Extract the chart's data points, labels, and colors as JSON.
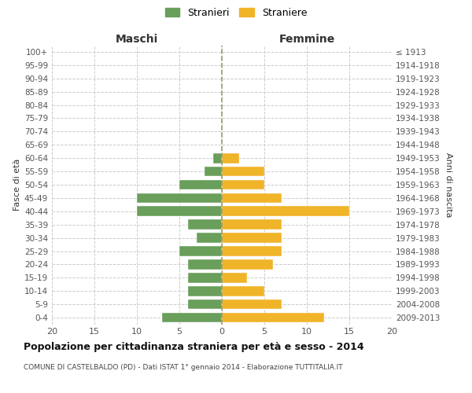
{
  "age_groups": [
    "100+",
    "95-99",
    "90-94",
    "85-89",
    "80-84",
    "75-79",
    "70-74",
    "65-69",
    "60-64",
    "55-59",
    "50-54",
    "45-49",
    "40-44",
    "35-39",
    "30-34",
    "25-29",
    "20-24",
    "15-19",
    "10-14",
    "5-9",
    "0-4"
  ],
  "birth_years": [
    "≤ 1913",
    "1914-1918",
    "1919-1923",
    "1924-1928",
    "1929-1933",
    "1934-1938",
    "1939-1943",
    "1944-1948",
    "1949-1953",
    "1954-1958",
    "1959-1963",
    "1964-1968",
    "1969-1973",
    "1974-1978",
    "1979-1983",
    "1984-1988",
    "1989-1993",
    "1994-1998",
    "1999-2003",
    "2004-2008",
    "2009-2013"
  ],
  "maschi": [
    0,
    0,
    0,
    0,
    0,
    0,
    0,
    0,
    1,
    2,
    5,
    10,
    10,
    4,
    3,
    5,
    4,
    4,
    4,
    4,
    7
  ],
  "femmine": [
    0,
    0,
    0,
    0,
    0,
    0,
    0,
    0,
    2,
    5,
    5,
    7,
    15,
    7,
    7,
    7,
    6,
    3,
    5,
    7,
    12
  ],
  "maschi_color": "#6a9e5b",
  "femmine_color": "#f0b429",
  "background_color": "#ffffff",
  "grid_color": "#cccccc",
  "title": "Popolazione per cittadinanza straniera per età e sesso - 2014",
  "subtitle": "COMUNE DI CASTELBALDO (PD) - Dati ISTAT 1° gennaio 2014 - Elaborazione TUTTITALIA.IT",
  "xlabel_left": "Maschi",
  "xlabel_right": "Femmine",
  "ylabel_left": "Fasce di età",
  "ylabel_right": "Anni di nascita",
  "legend_maschi": "Stranieri",
  "legend_femmine": "Straniere",
  "xlim": 20
}
